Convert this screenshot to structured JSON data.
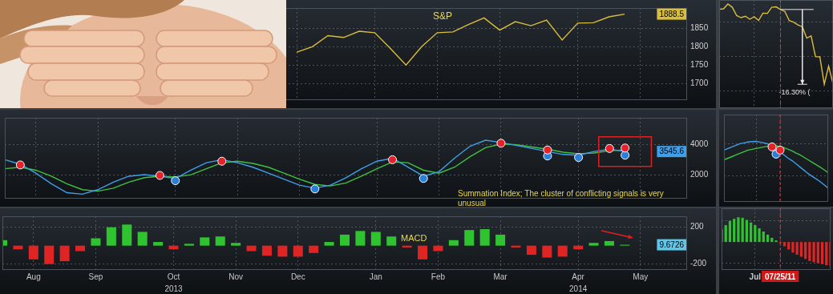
{
  "chart_data": [
    {
      "type": "line",
      "title": "S&P",
      "categories": [
        null,
        null,
        "Aug",
        null,
        null,
        null,
        "Sep",
        null,
        null,
        null,
        null,
        "Oct",
        null,
        null,
        null,
        "Nov",
        null,
        null,
        null,
        "Dec",
        null,
        null,
        null,
        null,
        "Jan",
        null,
        null,
        null,
        "Feb",
        null,
        null,
        null,
        "Mar",
        null,
        null,
        null,
        null,
        "Apr",
        null,
        null,
        null,
        "May",
        null,
        null,
        null
      ],
      "series": [
        {
          "color": "#d9bd3c",
          "values": [
            null,
            null,
            null,
            null,
            null,
            null,
            null,
            null,
            null,
            null,
            null,
            null,
            null,
            null,
            null,
            null,
            null,
            null,
            null,
            1785,
            1800,
            1830,
            1825,
            1842,
            1838,
            1795,
            1750,
            1800,
            1838,
            1840,
            1860,
            1878,
            1845,
            1868,
            1857,
            1872,
            1818,
            1864,
            1865,
            1881,
            1888.5,
            null,
            null,
            null,
            null
          ]
        }
      ],
      "last_value": 1888.5,
      "ylim": [
        1655,
        1905
      ],
      "yticks": [
        1700,
        1750,
        1800,
        1850
      ],
      "grid": true,
      "tick_labels": "y"
    },
    {
      "type": "line",
      "categories": [
        null,
        null,
        "Aug",
        null,
        null,
        null,
        "Sep",
        null,
        null,
        null,
        null,
        "Oct",
        null,
        null,
        null,
        "Nov",
        null,
        null,
        null,
        "Dec",
        null,
        null,
        null,
        null,
        "Jan",
        null,
        null,
        null,
        "Feb",
        null,
        null,
        null,
        "Mar",
        null,
        null,
        null,
        null,
        "Apr",
        null,
        null,
        null,
        "May",
        null,
        null,
        null
      ],
      "series": [
        {
          "color": "#3f9fe8",
          "values": [
            3000,
            2700,
            2100,
            1400,
            800,
            700,
            1000,
            1500,
            1900,
            2000,
            1900,
            1750,
            2300,
            2800,
            3000,
            2800,
            2500,
            2100,
            1700,
            1300,
            1100,
            1300,
            1800,
            2400,
            2900,
            3100,
            2500,
            1900,
            2200,
            3100,
            3900,
            4300,
            4150,
            3950,
            3750,
            3550,
            3350,
            3300,
            3550,
            3700,
            3545.6,
            null,
            null,
            null,
            null
          ]
        },
        {
          "color": "#41c041",
          "values": [
            2400,
            2500,
            2300,
            1900,
            1400,
            1000,
            900,
            1100,
            1500,
            1800,
            1900,
            1850,
            2000,
            2400,
            2800,
            2900,
            2750,
            2500,
            2100,
            1700,
            1350,
            1250,
            1450,
            1900,
            2400,
            2850,
            2800,
            2300,
            2100,
            2500,
            3200,
            3800,
            4050,
            4000,
            3850,
            3700,
            3500,
            3400,
            3450,
            3600,
            3650,
            null,
            null,
            null,
            null
          ]
        },
        {
          "type": "scatter",
          "color": "#e8202a",
          "marker": "circle",
          "values": [
            null,
            2650,
            null,
            null,
            null,
            null,
            null,
            null,
            null,
            null,
            1950,
            null,
            null,
            null,
            2900,
            null,
            null,
            null,
            null,
            null,
            null,
            null,
            null,
            null,
            null,
            3000,
            null,
            null,
            null,
            null,
            null,
            null,
            4100,
            null,
            null,
            3650,
            null,
            null,
            null,
            3750,
            3780,
            null,
            null,
            null,
            null
          ]
        },
        {
          "type": "scatter",
          "color": "#2a7fd8",
          "marker": "circle",
          "values": [
            null,
            null,
            null,
            null,
            null,
            null,
            null,
            null,
            null,
            null,
            null,
            1600,
            null,
            null,
            null,
            null,
            null,
            null,
            null,
            null,
            1050,
            null,
            null,
            null,
            null,
            null,
            null,
            1750,
            null,
            null,
            null,
            null,
            null,
            null,
            null,
            3250,
            null,
            3150,
            null,
            null,
            3300,
            null,
            null,
            null,
            null
          ]
        }
      ],
      "last_value": 3545.6,
      "annotations": [
        {
          "text": "Summation Index; The cluster of conflicting signals is very unusual"
        }
      ],
      "ylim": [
        400,
        5800
      ],
      "yticks": [
        2000,
        4000
      ],
      "grid": true,
      "tick_labels": "y"
    },
    {
      "type": "bar",
      "title": "MACD",
      "categories": [
        null,
        null,
        "Aug",
        null,
        null,
        null,
        "Sep",
        null,
        null,
        null,
        null,
        "Oct",
        null,
        null,
        null,
        "Nov",
        null,
        null,
        null,
        "Dec",
        null,
        null,
        null,
        null,
        "Jan",
        null,
        null,
        null,
        "Feb",
        null,
        null,
        null,
        "Mar",
        null,
        null,
        null,
        null,
        "Apr",
        null,
        null,
        null,
        "May",
        null,
        null,
        null
      ],
      "series": [
        {
          "values": [
            60,
            -40,
            -150,
            -200,
            -170,
            -60,
            80,
            200,
            230,
            150,
            40,
            -40,
            20,
            90,
            100,
            30,
            -60,
            -110,
            -120,
            -120,
            -80,
            40,
            120,
            160,
            150,
            100,
            -20,
            -150,
            -60,
            60,
            170,
            180,
            120,
            -20,
            -100,
            -130,
            -120,
            -40,
            30,
            50,
            9.6726,
            null,
            null,
            null,
            null
          ],
          "colors": [
            "#2fc42f",
            "#e02424",
            "#e02424",
            "#e02424",
            "#e02424",
            "#e02424",
            "#2fc42f",
            "#2fc42f",
            "#2fc42f",
            "#2fc42f",
            "#2fc42f",
            "#e02424",
            "#2fc42f",
            "#2fc42f",
            "#2fc42f",
            "#2fc42f",
            "#e02424",
            "#e02424",
            "#e02424",
            "#e02424",
            "#e02424",
            "#2fc42f",
            "#2fc42f",
            "#2fc42f",
            "#2fc42f",
            "#2fc42f",
            "#e02424",
            "#e02424",
            "#e02424",
            "#2fc42f",
            "#2fc42f",
            "#2fc42f",
            "#2fc42f",
            "#e02424",
            "#e02424",
            "#e02424",
            "#e02424",
            "#e02424",
            "#2fc42f",
            "#2fc42f",
            "#2fc42f",
            null,
            null,
            null,
            null
          ]
        }
      ],
      "last_value": 9.6726,
      "annotations": [
        {
          "text": "2013",
          "category": "Oct"
        },
        {
          "text": "2014",
          "category": "Apr"
        }
      ],
      "ylim": [
        -265,
        320
      ],
      "yticks": [
        -200,
        200
      ],
      "grid": true
    },
    {
      "type": "line",
      "categories": [
        null,
        null,
        null,
        null,
        null,
        null,
        null,
        null,
        "Jul",
        null,
        null,
        null,
        null,
        null,
        "07/25/11",
        null,
        null,
        null,
        null,
        null,
        null,
        null,
        null,
        null,
        null,
        null,
        null
      ],
      "series": [
        {
          "color": "#d9bd3c",
          "values": [
            1337.9,
            1339.2,
            1353.2,
            1343.8,
            1319.5,
            1313.6,
            1317.7,
            1308.9,
            1316.1,
            1305.4,
            1326.7,
            1325.8,
            1343.8,
            1345,
            1337.4,
            1331.9,
            1304.9,
            1300.7,
            1292.3,
            1287,
            1254.1,
            1260.3,
            1200.1,
            1199.4,
            1119.5,
            1172.5,
            1120.8
          ]
        }
      ],
      "annotations": [
        {
          "text": "-16.30% ("
        }
      ],
      "ylim": [
        1050,
        1365
      ],
      "yticks": [
        1100,
        1200,
        1300
      ],
      "grid": true,
      "tick_labels": false
    },
    {
      "type": "line",
      "categories": [
        null,
        null,
        null,
        null,
        null,
        null,
        null,
        null,
        "Jul",
        null,
        null,
        null,
        null,
        null,
        "07/25/11",
        null,
        null,
        null,
        null,
        null,
        null,
        null,
        null,
        null,
        null,
        null,
        null
      ],
      "series": [
        {
          "color": "#3f9fe8",
          "values": [
            3600,
            3700,
            3800,
            3900,
            4000,
            4050,
            4100,
            4130,
            4140,
            4100,
            4050,
            3980,
            3880,
            3700,
            3500,
            3300,
            3100,
            2950,
            2750,
            2550,
            2350,
            2150,
            1980,
            1820,
            1650,
            1450,
            1250
          ]
        },
        {
          "color": "#41c041",
          "values": [
            3000,
            3100,
            3200,
            3300,
            3400,
            3500,
            3600,
            3650,
            3700,
            3750,
            3800,
            3850,
            3880,
            3870,
            3820,
            3750,
            3650,
            3550,
            3420,
            3300,
            3150,
            3000,
            2850,
            2700,
            2550,
            2380,
            2200
          ]
        },
        {
          "type": "scatter",
          "color": "#e8202a",
          "marker": "circle",
          "values": [
            null,
            null,
            null,
            null,
            null,
            null,
            null,
            null,
            null,
            null,
            null,
            null,
            3800,
            null,
            3600,
            null,
            null,
            null,
            null,
            null,
            null,
            null,
            null,
            null,
            null,
            null,
            null
          ]
        },
        {
          "type": "scatter",
          "color": "#2a7fd8",
          "marker": "circle",
          "values": [
            null,
            null,
            null,
            null,
            null,
            null,
            null,
            null,
            null,
            null,
            null,
            null,
            null,
            3350,
            null,
            null,
            null,
            null,
            null,
            null,
            null,
            null,
            null,
            null,
            null,
            null,
            null
          ]
        }
      ],
      "ylim": [
        400,
        5800
      ],
      "yticks": [
        2000,
        4000
      ],
      "grid": true,
      "tick_labels": false
    },
    {
      "type": "bar",
      "categories": [
        null,
        null,
        null,
        null,
        null,
        null,
        null,
        null,
        "Jul",
        null,
        null,
        null,
        null,
        null,
        "07/25/11",
        null,
        null,
        null,
        null,
        null,
        null,
        null,
        null,
        null,
        null,
        null,
        null
      ],
      "series": [
        {
          "values": [
            120,
            160,
            200,
            220,
            235,
            230,
            210,
            185,
            160,
            130,
            100,
            70,
            40,
            15,
            -10,
            -40,
            -70,
            -100,
            -120,
            -140,
            -160,
            -180,
            -190,
            -200,
            -210,
            -220,
            -225
          ],
          "colors": [
            "#2fc42f",
            "#2fc42f",
            "#2fc42f",
            "#2fc42f",
            "#2fc42f",
            "#2fc42f",
            "#2fc42f",
            "#2fc42f",
            "#2fc42f",
            "#2fc42f",
            "#2fc42f",
            "#2fc42f",
            "#2fc42f",
            "#2fc42f",
            "#e02424",
            "#e02424",
            "#e02424",
            "#e02424",
            "#e02424",
            "#e02424",
            "#e02424",
            "#e02424",
            "#e02424",
            "#e02424",
            "#e02424",
            "#e02424",
            "#e02424"
          ]
        }
      ],
      "ylim": [
        -265,
        320
      ],
      "yticks": [
        -200,
        200
      ],
      "grid": true,
      "tick_labels": "x"
    }
  ]
}
